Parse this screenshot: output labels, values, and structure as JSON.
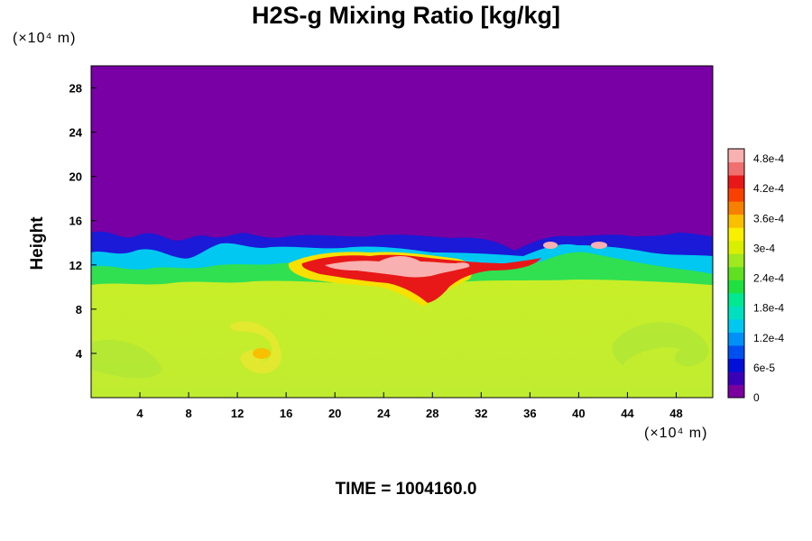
{
  "chart_data": {
    "type": "heatmap",
    "title": "H2S-g Mixing Ratio [kg/kg]",
    "ylabel": "Height",
    "xunit": "(×10⁴ m)",
    "yunit": "(×10⁴ m)",
    "footer": "TIME = 1004160.0",
    "xlim": [
      0,
      51
    ],
    "ylim": [
      0,
      30
    ],
    "xticks": [
      4,
      8,
      12,
      16,
      20,
      24,
      28,
      32,
      36,
      40,
      44,
      48
    ],
    "yticks": [
      4,
      8,
      12,
      16,
      20,
      24,
      28
    ],
    "colorbar": {
      "range": [
        0,
        0.0005
      ],
      "ticks": [
        "0",
        "6e-5",
        "1.2e-4",
        "1.8e-4",
        "2.4e-4",
        "3e-4",
        "3.6e-4",
        "4.2e-4",
        "4.8e-4"
      ],
      "colors": [
        "#7a00a0",
        "#3a00b8",
        "#0010d8",
        "#0050f0",
        "#0090f8",
        "#00c8f0",
        "#00e0c0",
        "#00e890",
        "#20e040",
        "#60e020",
        "#a0e820",
        "#d8f000",
        "#f8f000",
        "#f8c000",
        "#f88000",
        "#f84000",
        "#e81818",
        "#f07070",
        "#f8b0b0"
      ]
    },
    "field_description": "upper region near 0 (purple); turbulent layer ~12-15 with blue/green; core ~11-13 at x 18-34 high values (red/pink); lower region ~3.3e-4 (yellow-green)"
  }
}
